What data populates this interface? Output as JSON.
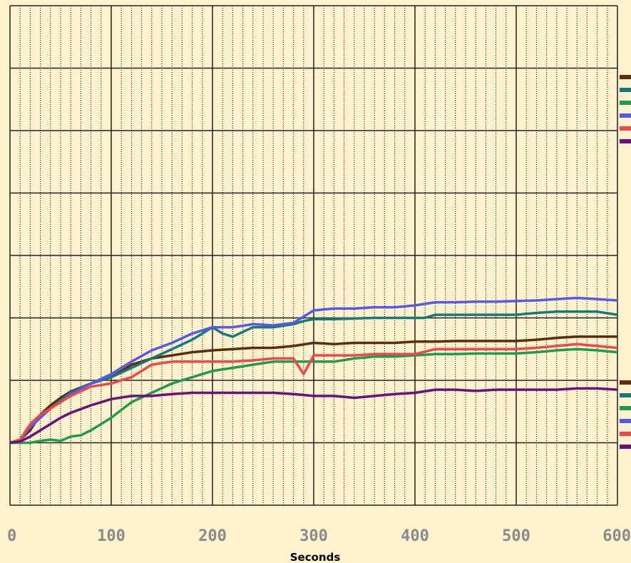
{
  "chart_data": {
    "type": "line",
    "title": "",
    "xlabel": "Seconds",
    "ylabel": "",
    "xlim": [
      0,
      600
    ],
    "ylim": [
      -1,
      7
    ],
    "grid": true,
    "background": "#fdf2cd",
    "x_ticks": [
      "0",
      "100",
      "200",
      "300",
      "400",
      "500",
      "600"
    ],
    "series": [
      {
        "color": "#5a2d0c",
        "x": [
          0,
          10,
          20,
          30,
          40,
          50,
          60,
          80,
          100,
          120,
          140,
          160,
          180,
          200,
          220,
          240,
          260,
          280,
          300,
          320,
          340,
          360,
          380,
          400,
          420,
          440,
          460,
          480,
          500,
          520,
          540,
          560,
          580,
          600
        ],
        "values": [
          0,
          0.05,
          0.2,
          0.45,
          0.6,
          0.72,
          0.82,
          0.95,
          1.05,
          1.25,
          1.35,
          1.4,
          1.45,
          1.48,
          1.5,
          1.52,
          1.52,
          1.55,
          1.6,
          1.58,
          1.6,
          1.6,
          1.6,
          1.62,
          1.62,
          1.63,
          1.63,
          1.63,
          1.63,
          1.65,
          1.68,
          1.7,
          1.7,
          1.7
        ]
      },
      {
        "color": "#167a7a",
        "x": [
          0,
          10,
          20,
          30,
          40,
          50,
          60,
          80,
          100,
          120,
          140,
          160,
          180,
          200,
          210,
          220,
          240,
          260,
          280,
          290,
          300,
          320,
          340,
          360,
          380,
          400,
          410,
          420,
          440,
          460,
          480,
          500,
          520,
          540,
          560,
          580,
          600
        ],
        "values": [
          0,
          0.05,
          0.25,
          0.4,
          0.55,
          0.68,
          0.8,
          0.95,
          1.05,
          1.2,
          1.35,
          1.5,
          1.65,
          1.85,
          1.75,
          1.7,
          1.85,
          1.85,
          1.9,
          1.95,
          1.98,
          1.98,
          1.99,
          2.0,
          2.0,
          2.0,
          2.0,
          2.05,
          2.05,
          2.05,
          2.05,
          2.05,
          2.08,
          2.1,
          2.1,
          2.1,
          2.05
        ]
      },
      {
        "color": "#1f9a50",
        "x": [
          0,
          20,
          30,
          40,
          50,
          60,
          70,
          80,
          100,
          120,
          140,
          160,
          180,
          200,
          220,
          240,
          260,
          280,
          300,
          320,
          340,
          360,
          380,
          400,
          420,
          440,
          460,
          480,
          500,
          520,
          540,
          560,
          580,
          600
        ],
        "values": [
          0,
          0,
          0.03,
          0.05,
          0.03,
          0.1,
          0.12,
          0.2,
          0.4,
          0.65,
          0.8,
          0.95,
          1.05,
          1.15,
          1.2,
          1.25,
          1.3,
          1.3,
          1.3,
          1.3,
          1.35,
          1.38,
          1.38,
          1.4,
          1.42,
          1.42,
          1.43,
          1.43,
          1.43,
          1.45,
          1.48,
          1.5,
          1.48,
          1.45
        ]
      },
      {
        "color": "#5858e8",
        "x": [
          0,
          10,
          20,
          30,
          40,
          50,
          60,
          80,
          100,
          120,
          140,
          160,
          180,
          200,
          220,
          240,
          260,
          280,
          300,
          320,
          340,
          360,
          380,
          400,
          420,
          440,
          460,
          480,
          500,
          520,
          540,
          560,
          580,
          600
        ],
        "values": [
          0,
          0.05,
          0.25,
          0.4,
          0.55,
          0.65,
          0.78,
          0.95,
          1.1,
          1.3,
          1.48,
          1.6,
          1.75,
          1.85,
          1.85,
          1.9,
          1.88,
          1.92,
          2.12,
          2.15,
          2.15,
          2.17,
          2.17,
          2.2,
          2.25,
          2.25,
          2.26,
          2.26,
          2.27,
          2.28,
          2.3,
          2.32,
          2.3,
          2.28
        ]
      },
      {
        "color": "#ee4848",
        "x": [
          0,
          10,
          20,
          30,
          40,
          50,
          60,
          80,
          100,
          120,
          140,
          160,
          180,
          200,
          220,
          240,
          260,
          280,
          290,
          300,
          320,
          340,
          360,
          380,
          400,
          420,
          440,
          460,
          480,
          500,
          520,
          540,
          560,
          580,
          600
        ],
        "values": [
          0,
          0.05,
          0.3,
          0.45,
          0.55,
          0.65,
          0.75,
          0.9,
          0.95,
          1.05,
          1.25,
          1.3,
          1.3,
          1.3,
          1.3,
          1.32,
          1.35,
          1.35,
          1.1,
          1.4,
          1.4,
          1.4,
          1.42,
          1.42,
          1.42,
          1.5,
          1.5,
          1.5,
          1.5,
          1.5,
          1.52,
          1.55,
          1.58,
          1.55,
          1.52
        ]
      },
      {
        "color": "#6a1278",
        "x": [
          0,
          10,
          20,
          30,
          40,
          50,
          60,
          80,
          100,
          120,
          140,
          160,
          180,
          200,
          220,
          240,
          260,
          280,
          300,
          320,
          340,
          360,
          380,
          400,
          420,
          440,
          460,
          480,
          500,
          520,
          540,
          560,
          580,
          600
        ],
        "values": [
          0,
          0.02,
          0.1,
          0.2,
          0.3,
          0.4,
          0.48,
          0.6,
          0.7,
          0.75,
          0.75,
          0.78,
          0.8,
          0.8,
          0.8,
          0.8,
          0.8,
          0.78,
          0.75,
          0.75,
          0.72,
          0.75,
          0.78,
          0.8,
          0.85,
          0.85,
          0.83,
          0.85,
          0.85,
          0.85,
          0.85,
          0.87,
          0.87,
          0.85
        ]
      }
    ]
  }
}
